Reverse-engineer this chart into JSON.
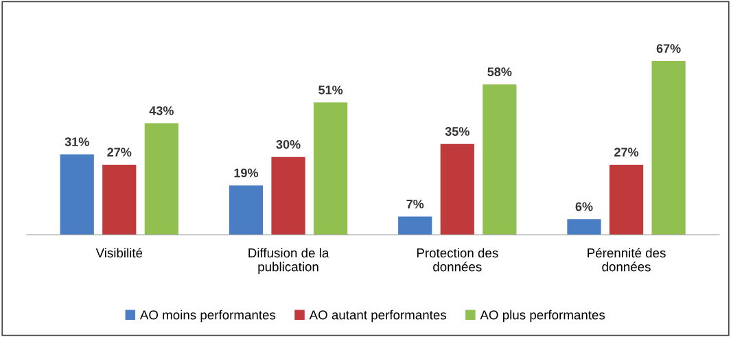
{
  "chart_data": {
    "type": "bar",
    "categories": [
      "Visibilité",
      "Diffusion de la\npublication",
      "Protection des\ndonnées",
      "Pérennité des\ndonnées"
    ],
    "series": [
      {
        "name": "AO moins performantes",
        "color": "#4a7ec4",
        "values": [
          31,
          19,
          7,
          6
        ],
        "value_labels": [
          "31%",
          "19%",
          "7%",
          "6%"
        ]
      },
      {
        "name": "AO autant performantes",
        "color": "#c0393b",
        "values": [
          27,
          30,
          35,
          27
        ],
        "value_labels": [
          "27%",
          "30%",
          "35%",
          "27%"
        ]
      },
      {
        "name": "AO plus performantes",
        "color": "#92c050",
        "values": [
          43,
          51,
          58,
          67
        ],
        "value_labels": [
          "43%",
          "51%",
          "58%",
          "67%"
        ]
      }
    ],
    "legend": "bottom",
    "grid": false
  }
}
